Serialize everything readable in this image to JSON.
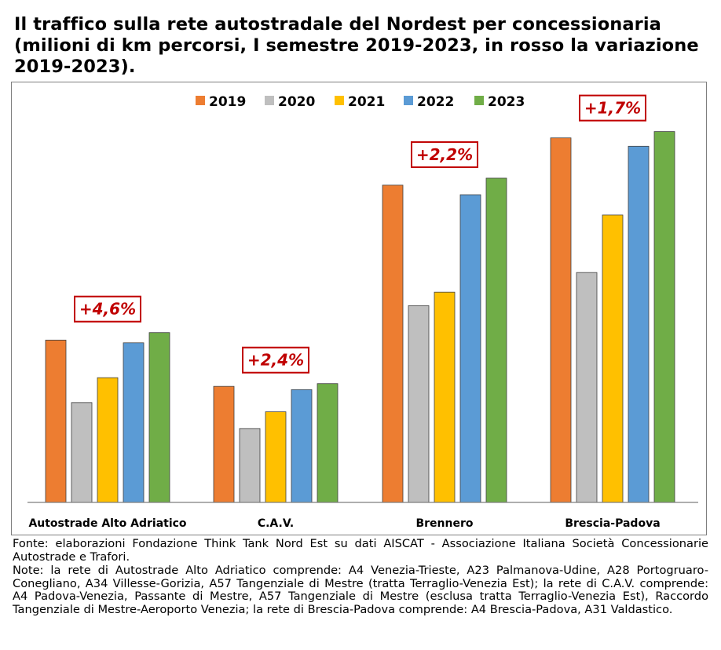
{
  "title": "Il traffico sulla rete autostradale del Nordest per concessionaria (milioni di km percorsi, I semestre 2019-2023, in rosso la variazione 2019-2023).",
  "footer": {
    "source": "Fonte: elaborazioni Fondazione Think Tank Nord Est su dati AISCAT - Associazione Italiana Società Concessionarie Autostrade e Trafori.",
    "note": "Note: la rete di Autostrade Alto Adriatico comprende: A4 Venezia-Trieste, A23 Palmanova-Udine, A28 Portogruaro-Conegliano, A34 Villesse-Gorizia, A57 Tangenziale di Mestre (tratta Terraglio-Venezia Est); la rete di C.A.V. comprende: A4 Padova-Venezia, Passante di Mestre, A57 Tangenziale di Mestre (esclusa tratta Terraglio-Venezia Est), Raccordo Tangenziale di Mestre-Aeroporto Venezia; la rete di Brescia-Padova comprende: A4 Brescia-Padova, A31 Valdastico."
  },
  "chart_data": {
    "type": "bar",
    "categories": [
      "Autostrade Alto Adriatico",
      "C.A.V.",
      "Brennero",
      "Brescia-Padova"
    ],
    "series": [
      {
        "name": "2019",
        "color": "#ed7d31",
        "values": [
          951,
          680,
          1859,
          2136
        ]
      },
      {
        "name": "2020",
        "color": "#bfbfbf",
        "values": [
          585,
          433,
          1153,
          1347
        ]
      },
      {
        "name": "2021",
        "color": "#ffc000",
        "values": [
          731,
          531,
          1232,
          1684
        ]
      },
      {
        "name": "2022",
        "color": "#5b9bd5",
        "values": [
          935,
          661,
          1803,
          2087
        ]
      },
      {
        "name": "2023",
        "color": "#70ad47",
        "values": [
          995,
          696,
          1900,
          2173
        ]
      }
    ],
    "annotations": [
      "+4,6%",
      "+2,4%",
      "+2,2%",
      "+1,7%"
    ],
    "annotation_color": "#c00000",
    "ylim": [
      0,
      2300
    ],
    "y_axis_visible": false,
    "grid": false,
    "legend_position": "top-center"
  }
}
